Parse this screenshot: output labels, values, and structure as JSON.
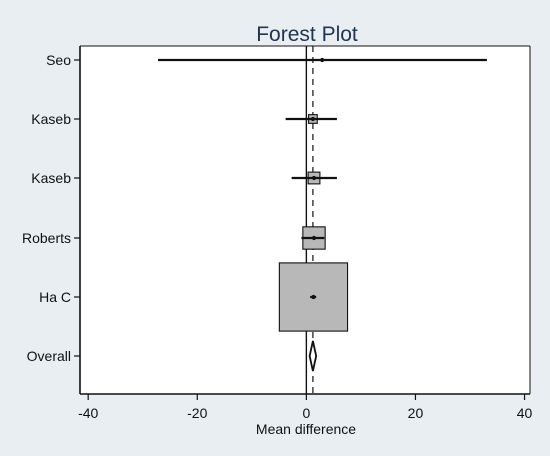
{
  "chart_data": {
    "type": "forest",
    "title": "Forest Plot",
    "xlabel": "Mean difference",
    "x_ticks": [
      -40,
      -20,
      0,
      20,
      40
    ],
    "xlim": [
      -41.5,
      41
    ],
    "grid": false,
    "legend": "none",
    "colors": {
      "figure_background": "#e8eef2",
      "plot_background": "#ffffff",
      "title": "#1f3552",
      "weight_box": "#b8b8b8",
      "lines": "#111111"
    },
    "reference_line": 0,
    "overall_reference_line": 1.2,
    "studies": [
      {
        "label": "Seo",
        "mean": 2.9,
        "ci_low": -27.2,
        "ci_high": 33.1,
        "weight_box": 0
      },
      {
        "label": "Kaseb",
        "mean": 1.2,
        "ci_low": -3.8,
        "ci_high": 5.6,
        "weight_box": 1.4
      },
      {
        "label": "Kaseb",
        "mean": 1.4,
        "ci_low": -2.7,
        "ci_high": 5.6,
        "weight_box": 1.9
      },
      {
        "label": "Roberts",
        "mean": 1.4,
        "ci_low": -0.9,
        "ci_high": 3.3,
        "weight_box": 3.6
      },
      {
        "label": "Ha C",
        "mean": 1.3,
        "ci_low": 0.7,
        "ci_high": 1.8,
        "weight_box": 11.0
      }
    ],
    "overall": {
      "label": "Overall",
      "mean": 1.2,
      "ci_low": 0.6,
      "ci_high": 1.8
    }
  }
}
